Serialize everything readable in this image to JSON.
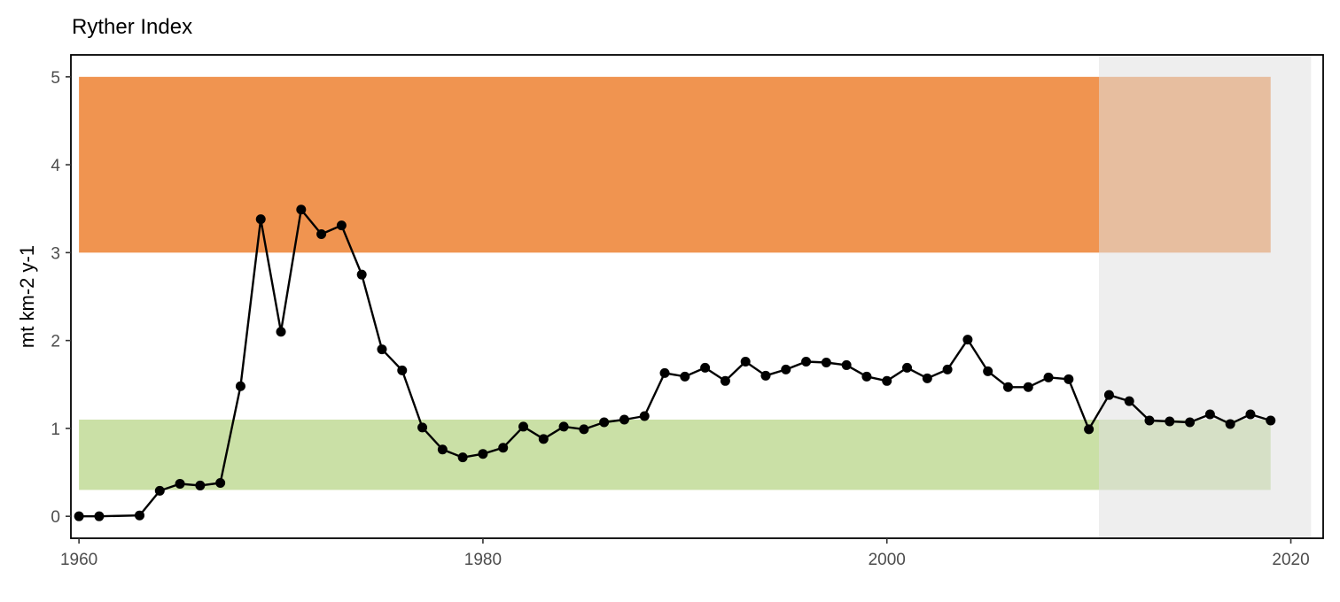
{
  "chart_data": {
    "type": "line",
    "title": "Ryther Index",
    "xlabel": "",
    "ylabel": "mt km-2 y-1",
    "xlim": [
      1959.6,
      2021.6
    ],
    "ylim": [
      -0.25,
      5.25
    ],
    "x_ticks": [
      1960,
      1980,
      2000,
      2020
    ],
    "y_ticks": [
      0,
      1,
      2,
      3,
      4,
      5
    ],
    "grid": false,
    "bands": [
      {
        "label": "high",
        "color": "#f09450",
        "x_range": [
          1960,
          2019
        ],
        "y_range": [
          3,
          5
        ]
      },
      {
        "label": "low",
        "color": "#cae0a6",
        "x_range": [
          1960,
          2019
        ],
        "y_range": [
          0.3,
          1.1
        ]
      }
    ],
    "highlight_region": {
      "color": "#e0e0e0",
      "opacity": 0.55,
      "x_range": [
        2010.5,
        2021
      ]
    },
    "series": [
      {
        "color": "#000000",
        "x": [
          1960,
          1961,
          1963,
          1964,
          1965,
          1966,
          1967,
          1968,
          1969,
          1970,
          1971,
          1972,
          1973,
          1974,
          1975,
          1976,
          1977,
          1978,
          1979,
          1980,
          1981,
          1982,
          1983,
          1984,
          1985,
          1986,
          1987,
          1988,
          1989,
          1990,
          1991,
          1992,
          1993,
          1994,
          1995,
          1996,
          1997,
          1998,
          1999,
          2000,
          2001,
          2002,
          2003,
          2004,
          2005,
          2006,
          2007,
          2008,
          2009,
          2010,
          2011,
          2012,
          2013,
          2014,
          2015,
          2016,
          2017,
          2018,
          2019
        ],
        "y": [
          0.0,
          0.0,
          0.01,
          0.29,
          0.37,
          0.35,
          0.38,
          1.48,
          3.38,
          2.1,
          3.49,
          3.21,
          3.31,
          2.75,
          1.9,
          1.66,
          1.01,
          0.76,
          0.67,
          0.71,
          0.78,
          1.02,
          0.88,
          1.02,
          0.99,
          1.07,
          1.1,
          1.14,
          1.63,
          1.59,
          1.69,
          1.54,
          1.76,
          1.6,
          1.67,
          1.76,
          1.75,
          1.72,
          1.59,
          1.54,
          1.69,
          1.57,
          1.67,
          2.01,
          1.65,
          1.47,
          1.47,
          1.58,
          1.56,
          0.99,
          1.38,
          1.31,
          1.09,
          1.08,
          1.07,
          1.16,
          1.05,
          1.16,
          1.09
        ]
      }
    ]
  }
}
